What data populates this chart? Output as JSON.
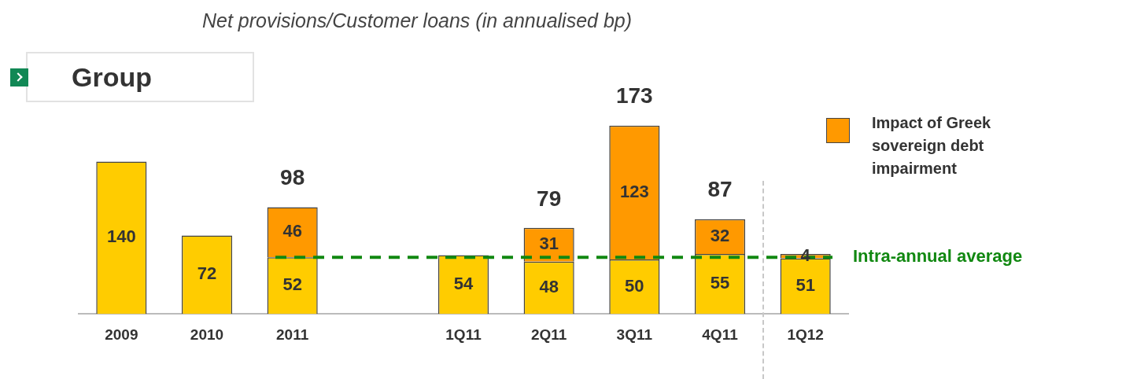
{
  "chart_data": {
    "type": "bar",
    "title": "Net provisions/Customer loans (in annualised bp)",
    "subtitle": "Group",
    "categories": [
      "2009",
      "2010",
      "2011",
      null,
      "1Q11",
      "2Q11",
      "3Q11",
      "4Q11",
      "1Q12"
    ],
    "series": [
      {
        "color": "#ffcc00",
        "values": [
          140,
          72,
          52,
          null,
          54,
          48,
          50,
          55,
          51
        ]
      },
      {
        "name": "Impact of Greek sovereign debt impairment",
        "color": "#ff9900",
        "values": [
          null,
          null,
          46,
          null,
          null,
          31,
          123,
          32,
          4
        ]
      }
    ],
    "stacked": true,
    "data_labels": true,
    "totals": [
      null,
      null,
      "98",
      null,
      null,
      "79",
      "173",
      "87",
      null
    ],
    "ref_lines": [
      {
        "axis": "y",
        "value": 52,
        "label": "Intra-annual average",
        "color": "#118811",
        "line_style": "dashed"
      }
    ],
    "tick_labels": "x",
    "legend": "right"
  }
}
